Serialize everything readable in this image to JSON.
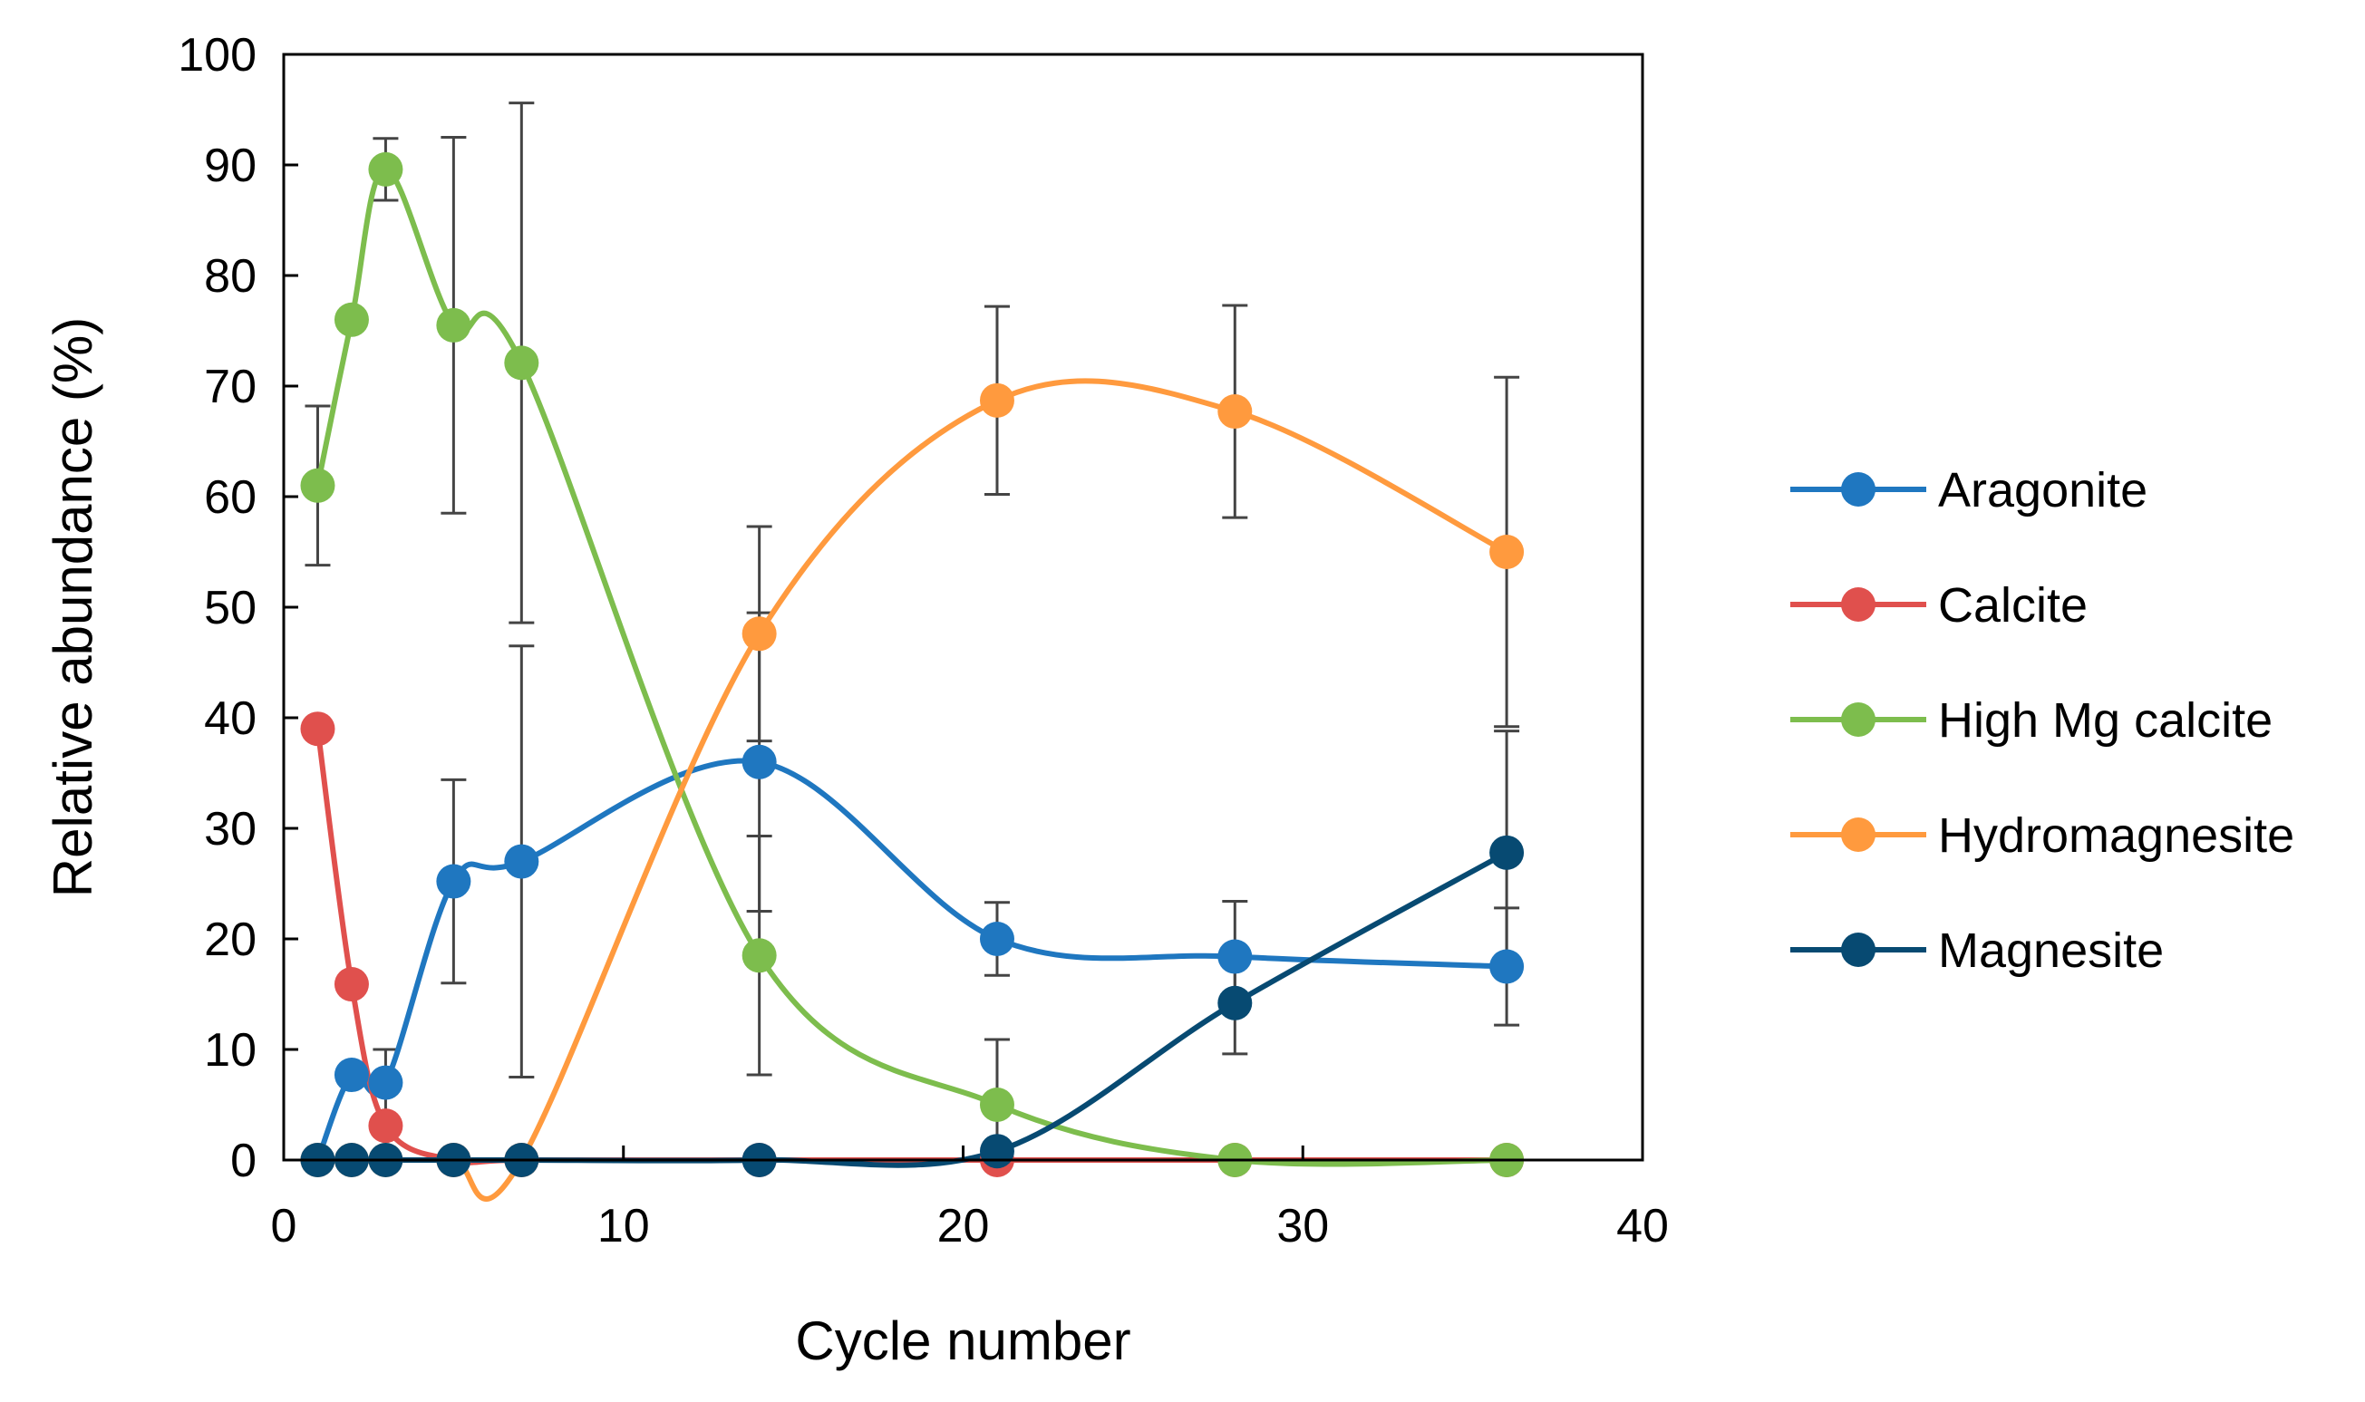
{
  "chart_data": {
    "type": "scatter",
    "title": "",
    "xlabel": "Cycle number",
    "ylabel": "Relative abundance (%)",
    "xlim": [
      0,
      40
    ],
    "ylim": [
      0,
      100
    ],
    "xticks": [
      0,
      10,
      20,
      30,
      40
    ],
    "yticks": [
      0,
      10,
      20,
      30,
      40,
      50,
      60,
      70,
      80,
      90,
      100
    ],
    "grid": false,
    "smoothed_lines": true,
    "legend_position": "right",
    "x": [
      1,
      2,
      3,
      5,
      7,
      14,
      21,
      28,
      36
    ],
    "series": [
      {
        "name": "Aragonite",
        "color": "#1f77c0",
        "values": [
          0,
          7.7,
          7,
          25.2,
          27,
          36,
          20,
          18.4,
          17.5
        ],
        "error": [
          null,
          null,
          3,
          9.2,
          19.5,
          13.5,
          3.3,
          5,
          5.3
        ]
      },
      {
        "name": "Calcite",
        "color": "#e0504d",
        "values": [
          39,
          15.9,
          3.1,
          0,
          0,
          0,
          0,
          0,
          0
        ],
        "error": [
          null,
          null,
          null,
          null,
          null,
          null,
          null,
          null,
          null
        ]
      },
      {
        "name": "High Mg calcite",
        "color": "#7dbd4d",
        "values": [
          61,
          76,
          89.6,
          75.5,
          72.1,
          18.5,
          5,
          0,
          0
        ],
        "error": [
          7.2,
          null,
          2.8,
          17,
          23.5,
          10.8,
          5.9,
          null,
          null
        ]
      },
      {
        "name": "Hydromagnesite",
        "color": "#ff9a3e",
        "values": [
          0,
          0,
          0,
          0,
          0,
          47.6,
          68.7,
          67.7,
          55
        ],
        "error": [
          null,
          null,
          null,
          null,
          null,
          9.7,
          8.5,
          9.6,
          15.8
        ]
      },
      {
        "name": "Magnesite",
        "color": "#074a72",
        "values": [
          0,
          0,
          0,
          0,
          0,
          0,
          0.8,
          14.2,
          27.8
        ],
        "error": [
          null,
          null,
          null,
          null,
          null,
          null,
          null,
          4.6,
          11
        ]
      }
    ]
  }
}
